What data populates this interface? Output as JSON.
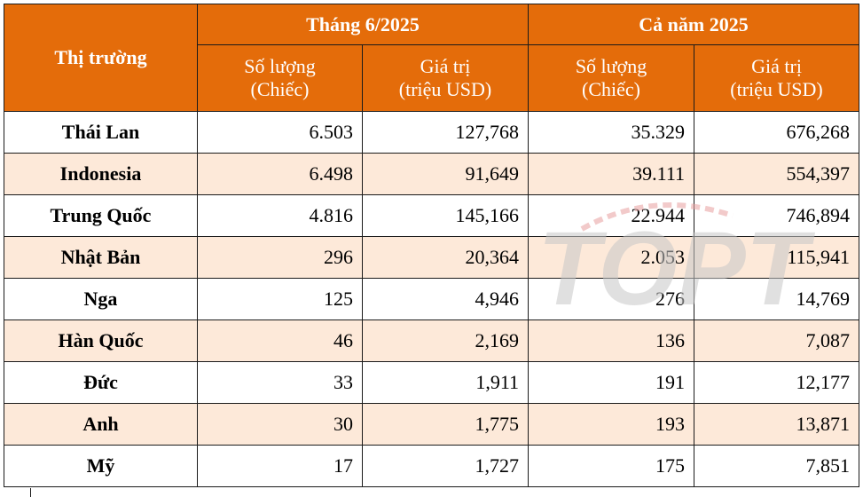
{
  "header": {
    "market_label": "Thị trường",
    "group_month": "Tháng 6/2025",
    "group_year": "Cả năm 2025",
    "qty_line1": "Số lượng",
    "qty_line2": "(Chiếc)",
    "val_line1": "Giá trị",
    "val_line2": "(triệu USD)"
  },
  "rows": [
    {
      "market": "Thái Lan",
      "m_qty": "6.503",
      "m_val": "127,768",
      "y_qty": "35.329",
      "y_val": "676,268"
    },
    {
      "market": "Indonesia",
      "m_qty": "6.498",
      "m_val": "91,649",
      "y_qty": "39.111",
      "y_val": "554,397"
    },
    {
      "market": "Trung Quốc",
      "m_qty": "4.816",
      "m_val": "145,166",
      "y_qty": "22.944",
      "y_val": "746,894"
    },
    {
      "market": "Nhật Bản",
      "m_qty": "296",
      "m_val": "20,364",
      "y_qty": "2.053",
      "y_val": "115,941"
    },
    {
      "market": "Nga",
      "m_qty": "125",
      "m_val": "4,946",
      "y_qty": "276",
      "y_val": "14,769"
    },
    {
      "market": "Hàn Quốc",
      "m_qty": "46",
      "m_val": "2,169",
      "y_qty": "136",
      "y_val": "7,087"
    },
    {
      "market": "Đức",
      "m_qty": "33",
      "m_val": "1,911",
      "y_qty": "191",
      "y_val": "12,177"
    },
    {
      "market": "Anh",
      "m_qty": "30",
      "m_val": "1,775",
      "y_qty": "193",
      "y_val": "13,871"
    },
    {
      "market": "Mỹ",
      "m_qty": "17",
      "m_val": "1,727",
      "y_qty": "175",
      "y_val": "7,851"
    }
  ],
  "watermark": {
    "text": "TOPT",
    "color": "#c8c8c8",
    "accent": "#e8a0a0"
  },
  "colors": {
    "header_bg": "#e46c0a",
    "alt_row_bg": "#fde9d9",
    "border": "#1a1a1a"
  }
}
